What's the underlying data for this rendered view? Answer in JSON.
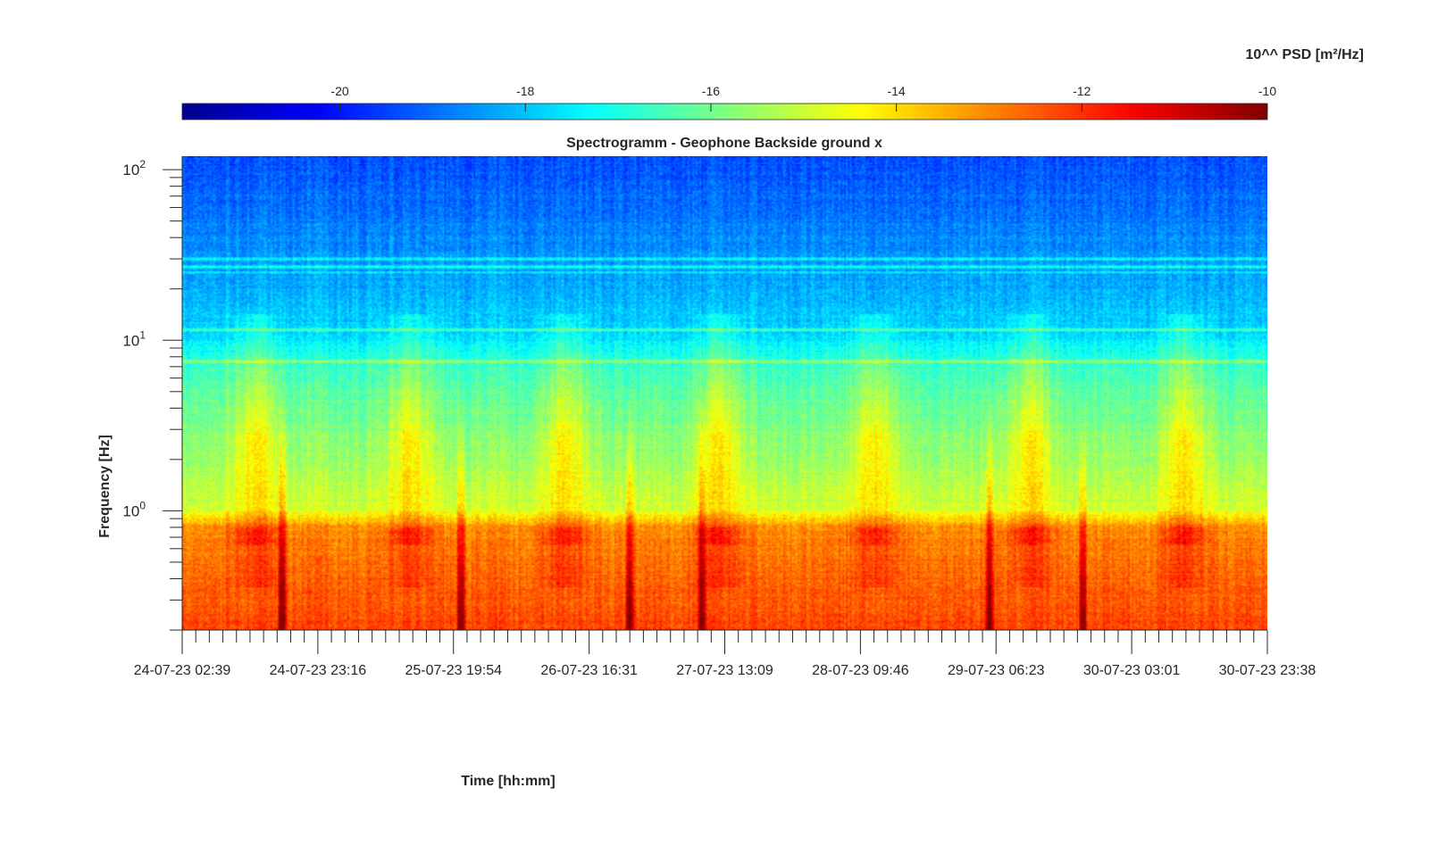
{
  "chart_data": {
    "type": "heatmap",
    "title": "Spectrogramm - Geophone Backside ground x",
    "xlabel": "Time [hh:mm]",
    "ylabel": "Frequency [Hz]",
    "x_tick_labels": [
      "24-07-23 02:39",
      "24-07-23 23:16",
      "25-07-23 19:54",
      "26-07-23 16:31",
      "27-07-23 13:09",
      "28-07-23 09:46",
      "29-07-23 06:23",
      "30-07-23 03:01",
      "30-07-23 23:38"
    ],
    "y_scale": "log",
    "y_ticks": [
      {
        "value": 1,
        "base": "10",
        "exp": "0"
      },
      {
        "value": 10,
        "base": "10",
        "exp": "1"
      },
      {
        "value": 100,
        "base": "10",
        "exp": "2"
      }
    ],
    "ylim": [
      0.2,
      120
    ],
    "colorbar": {
      "label": "10^^ PSD [m²/Hz]",
      "ticks": [
        -20,
        -18,
        -16,
        -14,
        -12,
        -10
      ],
      "range": [
        -21.7,
        -10
      ],
      "colormap": "jet",
      "location": "top"
    },
    "features": {
      "low_frequency_band_hz": [
        0.2,
        0.8
      ],
      "persistent_lines_hz": [
        7.5,
        11.5,
        25,
        27,
        30
      ],
      "daily_bursts": 7,
      "transient_events_time_fraction": [
        0.092,
        0.257,
        0.412,
        0.479,
        0.744,
        0.83
      ]
    }
  }
}
